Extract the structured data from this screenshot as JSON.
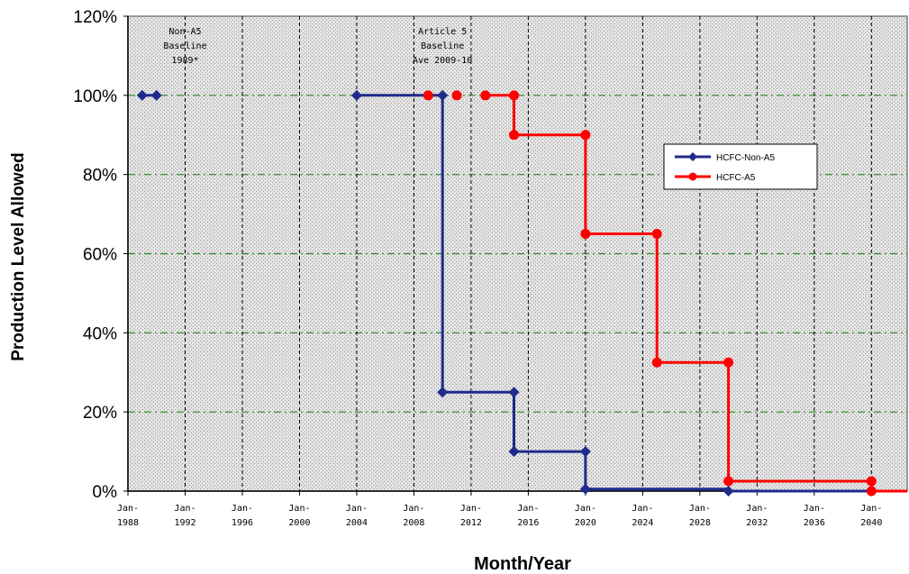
{
  "chart_data": {
    "type": "line",
    "title": "",
    "xlabel": "Month/Year",
    "ylabel": "Production Level Allowed",
    "ylim": [
      0,
      120
    ],
    "y_ticks": [
      "0%",
      "20%",
      "40%",
      "60%",
      "80%",
      "100%",
      "120%"
    ],
    "x_ticks": [
      [
        "Jan-",
        "1988"
      ],
      [
        "Jan-",
        "1992"
      ],
      [
        "Jan-",
        "1996"
      ],
      [
        "Jan-",
        "2000"
      ],
      [
        "Jan-",
        "2004"
      ],
      [
        "Jan-",
        "2008"
      ],
      [
        "Jan-",
        "2012"
      ],
      [
        "Jan-",
        "2016"
      ],
      [
        "Jan-",
        "2020"
      ],
      [
        "Jan-",
        "2024"
      ],
      [
        "Jan-",
        "2028"
      ],
      [
        "Jan-",
        "2032"
      ],
      [
        "Jan-",
        "2036"
      ],
      [
        "Jan-",
        "2040"
      ]
    ],
    "xlim": [
      "1988-01",
      "2042-07"
    ],
    "grid": {
      "vertical": "dashed black",
      "horizontal": "dash-dot green"
    },
    "legend": {
      "placement": "right"
    },
    "series": [
      {
        "name": "HCFC-Non-A5",
        "color": "#1f2a8c",
        "marker": "diamond",
        "segments": [
          [
            [
              "1989-01",
              100
            ],
            [
              "1990-01",
              100
            ]
          ],
          [
            [
              "2004-01",
              100
            ],
            [
              "2010-01",
              100
            ],
            [
              "2010-01",
              25
            ],
            [
              "2015-01",
              25
            ],
            [
              "2015-01",
              10
            ],
            [
              "2020-01",
              10
            ],
            [
              "2020-01",
              0.5
            ],
            [
              "2030-01",
              0.5
            ],
            [
              "2030-01",
              0
            ],
            [
              "2040-01",
              0
            ]
          ]
        ],
        "markers": [
          [
            "1989-01",
            100
          ],
          [
            "1990-01",
            100
          ],
          [
            "2004-01",
            100
          ],
          [
            "2010-01",
            100
          ],
          [
            "2010-01",
            25
          ],
          [
            "2015-01",
            25
          ],
          [
            "2015-01",
            10
          ],
          [
            "2020-01",
            10
          ],
          [
            "2020-01",
            0.5
          ],
          [
            "2030-01",
            0
          ],
          [
            "2040-01",
            0
          ]
        ]
      },
      {
        "name": "HCFC-A5",
        "color": "#ff0000",
        "marker": "circle",
        "segments": [
          [
            [
              "2013-01",
              100
            ],
            [
              "2015-01",
              100
            ],
            [
              "2015-01",
              90
            ],
            [
              "2020-01",
              90
            ],
            [
              "2020-01",
              65
            ],
            [
              "2025-01",
              65
            ],
            [
              "2025-01",
              32.5
            ],
            [
              "2030-01",
              32.5
            ],
            [
              "2030-01",
              2.5
            ],
            [
              "2040-01",
              2.5
            ],
            [
              "2040-01",
              0
            ],
            [
              "2042-07",
              0
            ]
          ]
        ],
        "markers": [
          [
            "2009-01",
            100
          ],
          [
            "2011-01",
            100
          ],
          [
            "2013-01",
            100
          ],
          [
            "2015-01",
            100
          ],
          [
            "2015-01",
            90
          ],
          [
            "2020-01",
            90
          ],
          [
            "2020-01",
            65
          ],
          [
            "2025-01",
            65
          ],
          [
            "2025-01",
            32.5
          ],
          [
            "2030-01",
            32.5
          ],
          [
            "2030-01",
            2.5
          ],
          [
            "2040-01",
            2.5
          ],
          [
            "2040-01",
            0
          ]
        ]
      }
    ],
    "annotations": [
      {
        "lines": [
          "Non-A5",
          "Baseline",
          "1989*"
        ],
        "x": "1992-01"
      },
      {
        "lines": [
          "Article 5",
          "Baseline",
          "Ave 2009-10"
        ],
        "x": "2010-01"
      }
    ]
  }
}
